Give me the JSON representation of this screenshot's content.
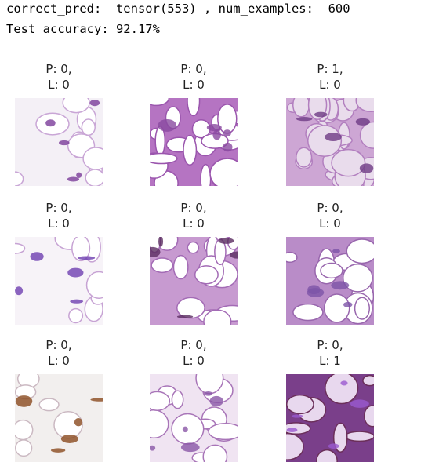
{
  "output": {
    "lines": [
      "correct_pred:  tensor(553) , num_examples:  600",
      "Test accuracy: 92.17%"
    ]
  },
  "grid": {
    "items": [
      {
        "pred": "P: 0,",
        "label": "L: 0"
      },
      {
        "pred": "P: 0,",
        "label": "L: 0"
      },
      {
        "pred": "P: 1,",
        "label": "L: 0"
      },
      {
        "pred": "P: 0,",
        "label": "L: 0"
      },
      {
        "pred": "P: 0,",
        "label": "L: 0"
      },
      {
        "pred": "P: 0,",
        "label": "L: 0"
      },
      {
        "pred": "P: 0,",
        "label": "L: 0"
      },
      {
        "pred": "P: 0,",
        "label": "L: 0"
      },
      {
        "pred": "P: 0,",
        "label": "L: 1"
      }
    ]
  }
}
